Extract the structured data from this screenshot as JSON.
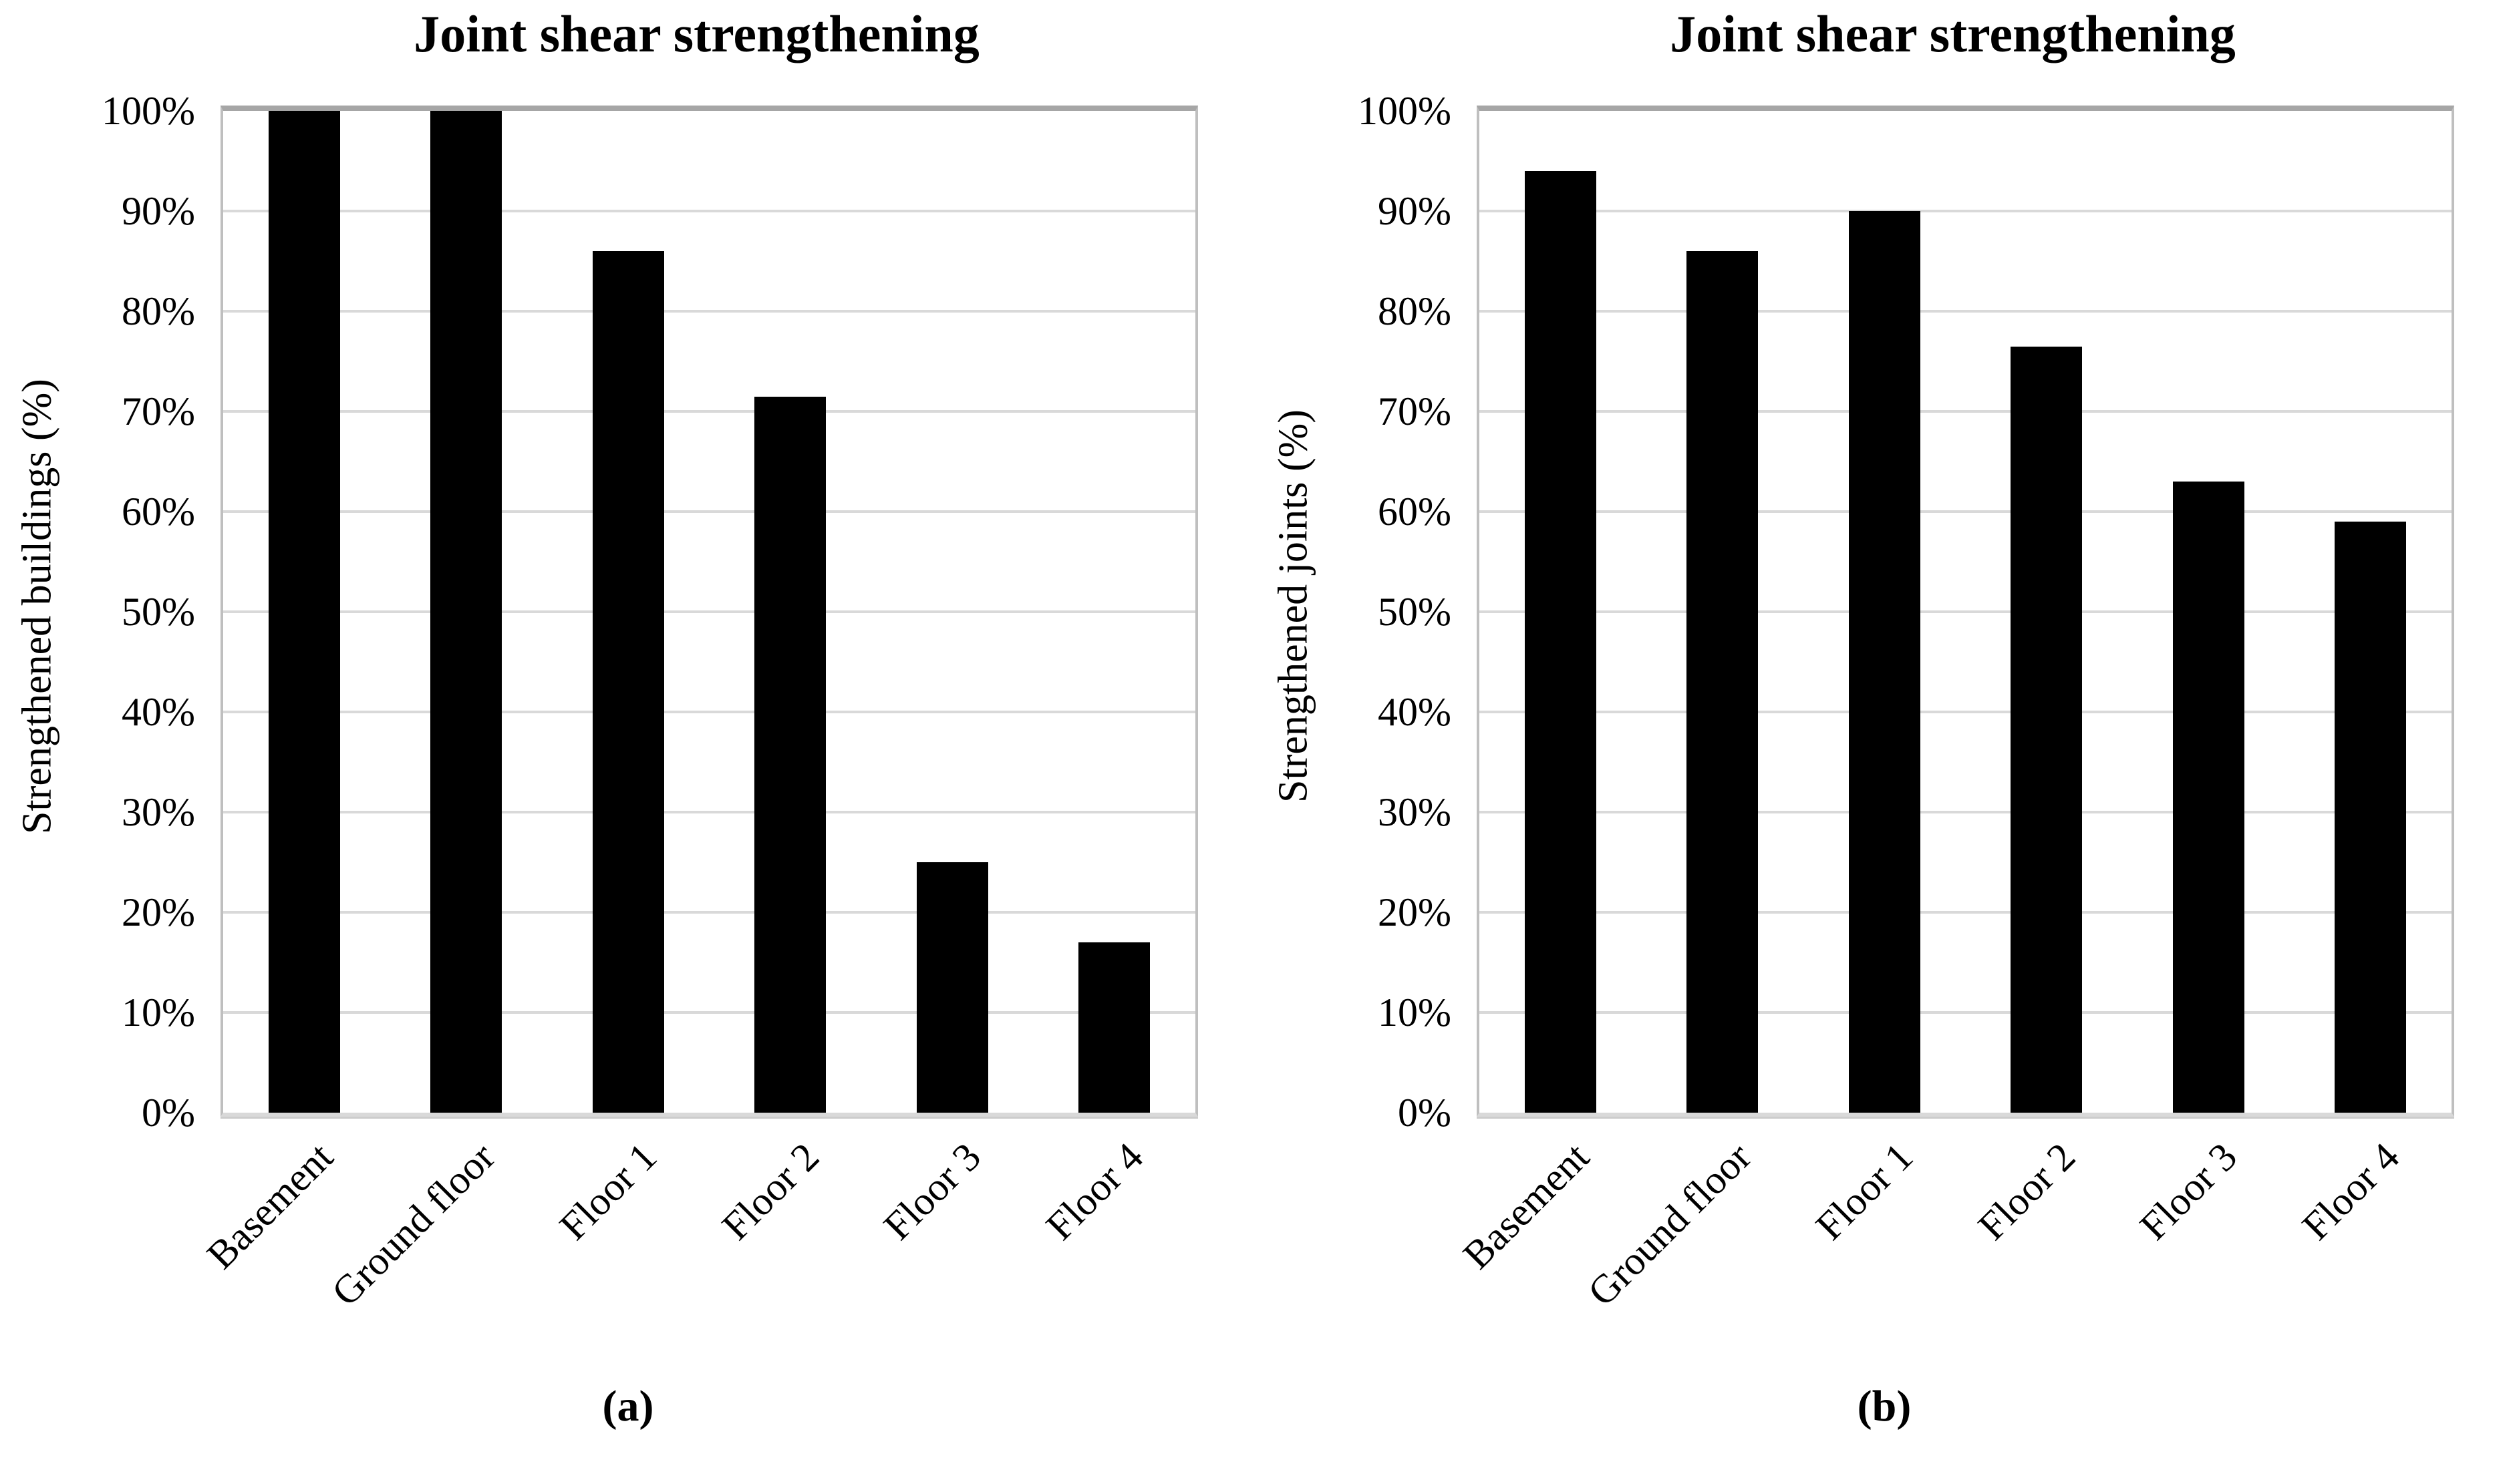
{
  "colors": {
    "bar": "#000000",
    "gridline": "#d9d9d9",
    "plot_border": "#bfbfbf",
    "plot_border_top": "#a6a6a6",
    "background": "#ffffff"
  },
  "chart_data": [
    {
      "type": "bar",
      "panel": "a",
      "caption_label": "(a)",
      "title": "Joint shear strengthening",
      "xlabel": "",
      "ylabel": "Strengthened buildings (%)",
      "categories": [
        "Basement",
        "Ground floor",
        "Floor 1",
        "Floor 2",
        "Floor 3",
        "Floor 4"
      ],
      "values": [
        100,
        100,
        86,
        71.5,
        25,
        17
      ],
      "unit": "%",
      "ylim": [
        0,
        100
      ],
      "ytick_step": 10,
      "ytick_labels": [
        "100%",
        "90%",
        "80%",
        "70%",
        "60%",
        "50%",
        "40%",
        "30%",
        "20%",
        "10%",
        "0%"
      ],
      "grid": "horizontal",
      "legend": "none",
      "bar_color": "#000000"
    },
    {
      "type": "bar",
      "panel": "b",
      "caption_label": "(b)",
      "title": "Joint shear strengthening",
      "xlabel": "",
      "ylabel": "Strengthened joints (%)",
      "categories": [
        "Basement",
        "Ground floor",
        "Floor 1",
        "Floor 2",
        "Floor 3",
        "Floor 4"
      ],
      "values": [
        94,
        86,
        90,
        76.5,
        63,
        59
      ],
      "unit": "%",
      "ylim": [
        0,
        100
      ],
      "ytick_step": 10,
      "ytick_labels": [
        "100%",
        "90%",
        "80%",
        "70%",
        "60%",
        "50%",
        "40%",
        "30%",
        "20%",
        "10%",
        "0%"
      ],
      "grid": "horizontal",
      "legend": "none",
      "bar_color": "#000000"
    }
  ]
}
